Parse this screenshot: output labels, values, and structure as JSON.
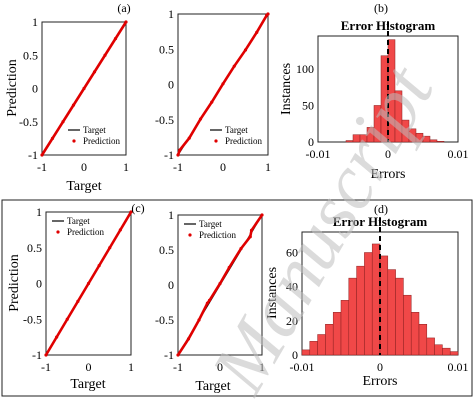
{
  "chart_data": [
    {
      "id": "a1",
      "panel_tag": "(a)",
      "type": "scatter",
      "xlabel": "Target",
      "ylabel": "Prediction",
      "xlim": [
        -1,
        1
      ],
      "ylim": [
        -1,
        1
      ],
      "xticks": [
        "-1",
        "0",
        "1"
      ],
      "yticks": [
        "1",
        "0.5",
        "0",
        "-0.5",
        "-1"
      ],
      "legend": [
        "Target",
        "Prediction"
      ],
      "legend_position": "bottom-right",
      "series": [
        {
          "name": "Target",
          "kind": "line",
          "x": [
            -1,
            1
          ],
          "y": [
            -1,
            1
          ],
          "color": "#000000"
        },
        {
          "name": "Prediction",
          "kind": "scatter",
          "color": "#e00000",
          "x": [
            -1,
            -0.75,
            -0.5,
            -0.25,
            0,
            0.25,
            0.5,
            0.75,
            1
          ],
          "y": [
            -1,
            -0.75,
            -0.5,
            -0.25,
            0,
            0.25,
            0.5,
            0.75,
            1
          ]
        }
      ]
    },
    {
      "id": "a2",
      "type": "scatter",
      "xlabel": "",
      "ylabel": "",
      "xlim": [
        -1,
        1
      ],
      "ylim": [
        -1,
        1
      ],
      "xticks": [
        "-1",
        "0",
        "1"
      ],
      "yticks": [
        "1",
        "0.5",
        "0",
        "-0.5",
        "-1"
      ],
      "legend": [
        "Target",
        "Prediction"
      ],
      "legend_position": "bottom-right",
      "series": [
        {
          "name": "Target",
          "kind": "line",
          "x": [
            -1,
            1
          ],
          "y": [
            -1,
            1
          ],
          "color": "#000000"
        },
        {
          "name": "Prediction",
          "kind": "scatter",
          "color": "#e00000",
          "x": [
            -1,
            -0.96,
            -0.75,
            -0.5,
            -0.25,
            0,
            0.25,
            0.5,
            0.75,
            0.97,
            1
          ],
          "y": [
            -1,
            -0.93,
            -0.76,
            -0.49,
            -0.25,
            0.01,
            0.26,
            0.49,
            0.74,
            0.98,
            1
          ]
        }
      ]
    },
    {
      "id": "b",
      "panel_tag": "(b)",
      "type": "bar",
      "title": "Error Histogram",
      "xlabel": "Errors",
      "ylabel": "Instances",
      "xlim": [
        -0.01,
        0.01
      ],
      "ylim": [
        0,
        145
      ],
      "xticks": [
        "-0.01",
        "0",
        "0.01"
      ],
      "yticks": [
        "100",
        "50",
        "0"
      ],
      "zero_line": 0,
      "color": "#f04848",
      "bin_width": 0.001,
      "bins": [
        -0.006,
        -0.005,
        -0.004,
        -0.003,
        -0.002,
        -0.001,
        0,
        0.001,
        0.002,
        0.003,
        0.004,
        0.005,
        0.006,
        0.007
      ],
      "values": [
        2,
        10,
        10,
        20,
        50,
        118,
        140,
        70,
        30,
        18,
        12,
        8,
        3,
        1
      ]
    },
    {
      "id": "c1",
      "panel_tag": "(c)",
      "type": "scatter",
      "xlabel": "Target",
      "ylabel": "Prediction",
      "xlim": [
        -1,
        1
      ],
      "ylim": [
        -1,
        1
      ],
      "xticks": [
        "-1",
        "0",
        "1"
      ],
      "yticks": [
        "1",
        "0.5",
        "0",
        "-0.5",
        "-1"
      ],
      "legend": [
        "Target",
        "Prediction"
      ],
      "legend_position": "top-left",
      "series": [
        {
          "name": "Target",
          "kind": "line",
          "x": [
            -1,
            1
          ],
          "y": [
            -1,
            1
          ],
          "color": "#000000"
        },
        {
          "name": "Prediction",
          "kind": "scatter",
          "color": "#e00000",
          "x": [
            -1,
            -0.75,
            -0.5,
            -0.25,
            0,
            0.25,
            0.5,
            0.75,
            1
          ],
          "y": [
            -1,
            -0.75,
            -0.5,
            -0.25,
            0,
            0.25,
            0.5,
            0.75,
            1
          ]
        }
      ]
    },
    {
      "id": "c2",
      "type": "scatter",
      "xlabel": "Target",
      "ylabel": "",
      "xlim": [
        -1,
        1
      ],
      "ylim": [
        -1,
        1
      ],
      "xticks": [
        "-1",
        "0",
        "1"
      ],
      "yticks": [
        "1",
        "0.5",
        "0",
        "-0.5",
        "-1"
      ],
      "legend": [
        "Target",
        "Prediction"
      ],
      "legend_position": "top-left",
      "series": [
        {
          "name": "Target",
          "kind": "line",
          "x": [
            -1,
            1
          ],
          "y": [
            -1,
            1
          ],
          "color": "#000000"
        },
        {
          "name": "Prediction",
          "kind": "scatter",
          "color": "#e00000",
          "x": [
            -1,
            -0.75,
            -0.5,
            -0.3,
            -0.25,
            0,
            0.22,
            0.5,
            0.72,
            0.75,
            1
          ],
          "y": [
            -1,
            -0.77,
            -0.5,
            -0.26,
            -0.22,
            0.02,
            0.25,
            0.52,
            0.69,
            0.78,
            1
          ]
        }
      ]
    },
    {
      "id": "d",
      "panel_tag": "(d)",
      "type": "bar",
      "title": "Error Histogram",
      "xlabel": "Errors",
      "ylabel": "Instances",
      "xlim": [
        -0.01,
        0.01
      ],
      "ylim": [
        0,
        72
      ],
      "xticks": [
        "-0.01",
        "0",
        "0.01"
      ],
      "yticks": [
        "60",
        "40",
        "20",
        "0"
      ],
      "zero_line": 0,
      "color": "#f04848",
      "bin_width": 0.001,
      "bins": [
        -0.01,
        -0.009,
        -0.008,
        -0.007,
        -0.006,
        -0.005,
        -0.004,
        -0.003,
        -0.002,
        -0.001,
        0,
        0.001,
        0.002,
        0.003,
        0.004,
        0.005,
        0.006,
        0.007,
        0.008,
        0.009
      ],
      "values": [
        3,
        8,
        12,
        18,
        25,
        32,
        45,
        52,
        60,
        65,
        58,
        50,
        45,
        35,
        25,
        18,
        10,
        6,
        4,
        2
      ]
    }
  ],
  "watermark": "Manuscript"
}
